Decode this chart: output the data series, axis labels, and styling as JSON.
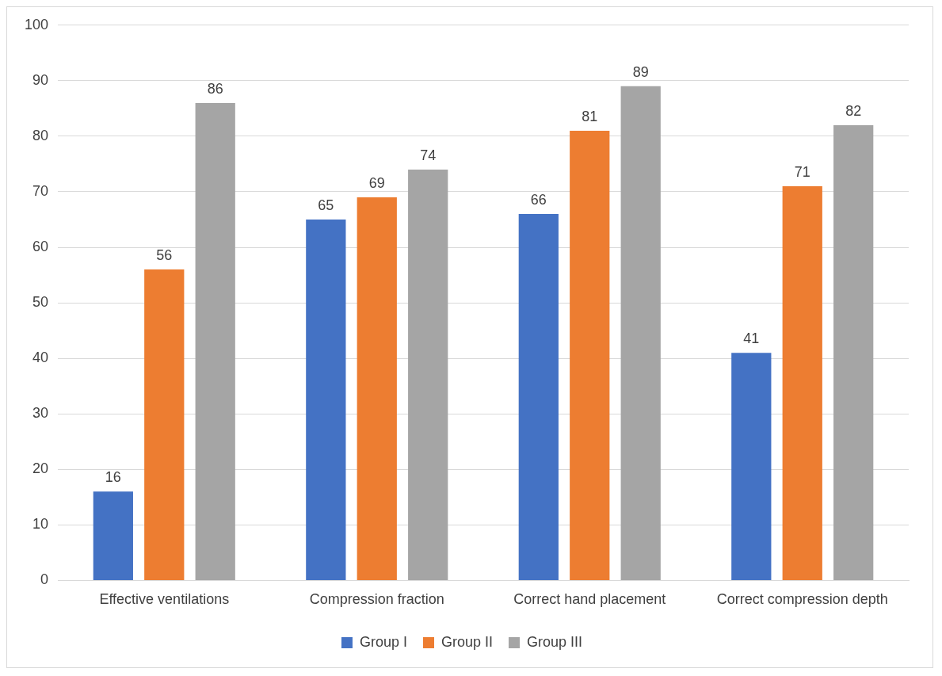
{
  "chart_data": {
    "type": "bar",
    "categories": [
      "Effective ventilations",
      "Compression fraction",
      "Correct hand placement",
      "Correct compression depth"
    ],
    "series": [
      {
        "name": "Group I",
        "color": "#4472c4",
        "values": [
          16,
          65,
          66,
          41
        ]
      },
      {
        "name": "Group II",
        "color": "#ed7d31",
        "values": [
          56,
          69,
          81,
          71
        ]
      },
      {
        "name": "Group III",
        "color": "#a5a5a5",
        "values": [
          86,
          74,
          89,
          82
        ]
      }
    ],
    "ylim": [
      0,
      100
    ],
    "yticks": [
      0,
      10,
      20,
      30,
      40,
      50,
      60,
      70,
      80,
      90,
      100
    ],
    "grid": "y",
    "legend": "bottom",
    "data_labels": true
  }
}
